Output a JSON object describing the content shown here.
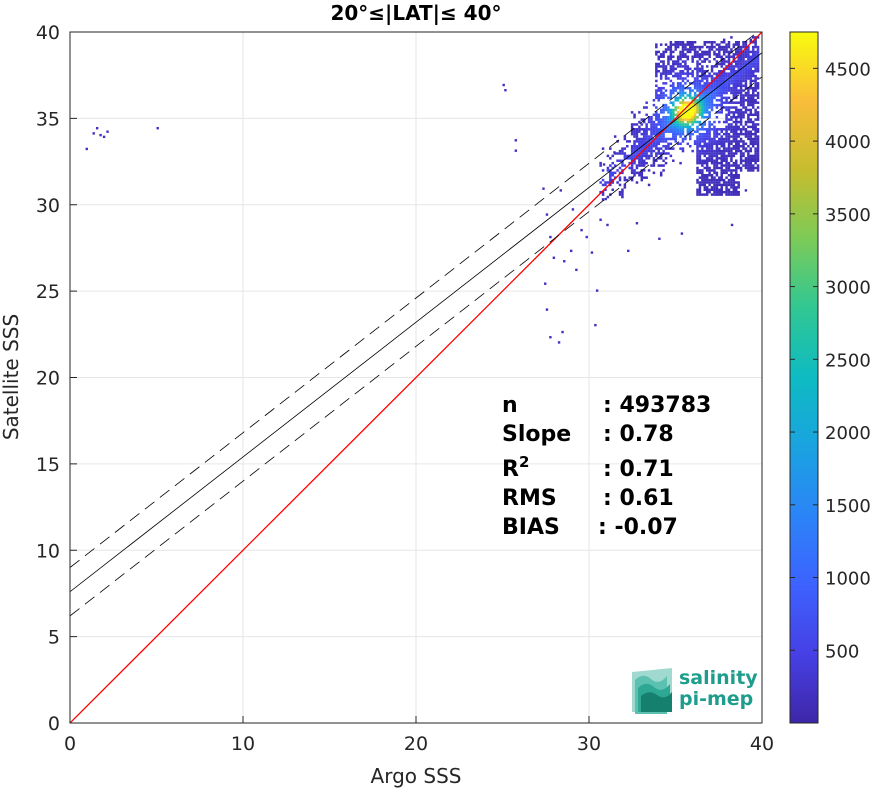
{
  "chart_data": {
    "type": "heatmap",
    "title": "20°≤|LAT|≤ 40°",
    "xlabel": "Argo SSS",
    "ylabel": "Satellite SSS",
    "xlim": [
      0,
      40
    ],
    "ylim": [
      0,
      40
    ],
    "xticks": [
      0,
      10,
      20,
      30,
      40
    ],
    "yticks": [
      0,
      5,
      10,
      15,
      20,
      25,
      30,
      35,
      40
    ],
    "grid": true,
    "colorbar": {
      "range": [
        0,
        4750
      ],
      "ticks": [
        500,
        1000,
        1500,
        2000,
        2500,
        3000,
        3500,
        4000,
        4500
      ],
      "colormap": "parula"
    },
    "identity_line": {
      "color": "#ff0000",
      "x": [
        0,
        40
      ],
      "y": [
        0,
        40
      ]
    },
    "regression": {
      "slope": 0.78,
      "intercept": 7.6,
      "band": 1.4
    },
    "density_core": {
      "x": 35.6,
      "y": 35.5,
      "peak": 4750
    },
    "sparse_points": [
      [
        0.9,
        33.3
      ],
      [
        1.3,
        34.2
      ],
      [
        1.5,
        34.5
      ],
      [
        1.7,
        34.1
      ],
      [
        1.9,
        34.0
      ],
      [
        2.1,
        34.3
      ],
      [
        5.0,
        34.5
      ],
      [
        25.0,
        37.0
      ],
      [
        25.1,
        36.7
      ],
      [
        25.7,
        33.8
      ],
      [
        25.7,
        33.2
      ],
      [
        27.3,
        31.0
      ],
      [
        27.5,
        29.5
      ],
      [
        27.7,
        28.2
      ],
      [
        27.9,
        27.0
      ],
      [
        27.4,
        25.5
      ],
      [
        27.5,
        24.0
      ],
      [
        27.7,
        22.4
      ],
      [
        28.2,
        22.1
      ],
      [
        28.4,
        22.7
      ],
      [
        28.5,
        26.8
      ],
      [
        28.9,
        27.4
      ],
      [
        29.2,
        26.3
      ],
      [
        29.5,
        28.6
      ],
      [
        29.8,
        28.2
      ],
      [
        30.1,
        27.3
      ],
      [
        30.3,
        23.1
      ],
      [
        30.4,
        25.1
      ],
      [
        30.6,
        29.2
      ],
      [
        30.9,
        30.4
      ],
      [
        29.0,
        29.8
      ],
      [
        28.3,
        30.9
      ],
      [
        31.2,
        31.4
      ],
      [
        31.0,
        28.9
      ],
      [
        32.2,
        27.4
      ],
      [
        32.7,
        29.0
      ],
      [
        34.0,
        28.1
      ],
      [
        35.3,
        28.4
      ],
      [
        38.2,
        28.9
      ],
      [
        39.0,
        30.9
      ],
      [
        31.4,
        33.1
      ],
      [
        30.8,
        32.4
      ]
    ],
    "stats": [
      {
        "name": "n",
        "value": ": 493783"
      },
      {
        "name": "Slope",
        "value": ": 0.78"
      },
      {
        "name": "R",
        "sup": "2",
        "value": ": 0.71"
      },
      {
        "name": "RMS",
        "value": ": 0.61"
      },
      {
        "name": "BIAS",
        "value": ": -0.07"
      }
    ]
  },
  "logo": {
    "line1": "salinity",
    "line2": "pi-mep"
  }
}
